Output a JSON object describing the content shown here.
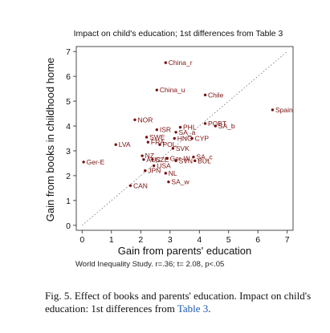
{
  "caption": {
    "text_before_ref": "Fig. 5.  Effect of books and parents' education. Impact on child's education: 1st differences from ",
    "ref": "Table 3",
    "text_after_ref": "."
  },
  "footnote": "World Inequality Study. r=.36; t= 2.08, p<.05",
  "colors": {
    "points": "#7a1010",
    "reference_line": "#444444",
    "axes": "#222222"
  },
  "chart_data": {
    "type": "scatter",
    "title": "Impact on child's education; 1st differences from Table 3",
    "xlabel": "Gain from parents' education",
    "ylabel": "Gain from books in childhood home",
    "xlim": [
      -0.2,
      7.2
    ],
    "ylim": [
      -0.2,
      7.2
    ],
    "xticks": [
      0,
      1,
      2,
      3,
      4,
      5,
      6,
      7
    ],
    "yticks": [
      0,
      1,
      2,
      3,
      4,
      5,
      6,
      7
    ],
    "grid": false,
    "reference_line": "y = x",
    "points": [
      {
        "label": "China_r",
        "x": 2.85,
        "y": 6.55
      },
      {
        "label": "China_u",
        "x": 2.55,
        "y": 5.45
      },
      {
        "label": "Chile",
        "x": 4.2,
        "y": 5.25
      },
      {
        "label": "Spain",
        "x": 6.5,
        "y": 4.65
      },
      {
        "label": "NOR",
        "x": 1.8,
        "y": 4.25
      },
      {
        "label": "POBT",
        "x": 4.2,
        "y": 4.1
      },
      {
        "label": "SA_b",
        "x": 4.55,
        "y": 4.0
      },
      {
        "label": "PHL",
        "x": 3.35,
        "y": 3.95
      },
      {
        "label": "ISR",
        "x": 2.55,
        "y": 3.85
      },
      {
        "label": "SA_a",
        "x": 3.2,
        "y": 3.75
      },
      {
        "label": "SWE",
        "x": 2.2,
        "y": 3.55
      },
      {
        "label": "HNG",
        "x": 3.15,
        "y": 3.5
      },
      {
        "label": "CYP",
        "x": 3.75,
        "y": 3.5
      },
      {
        "label": "FRA",
        "x": 2.25,
        "y": 3.35
      },
      {
        "label": "POL",
        "x": 2.65,
        "y": 3.25
      },
      {
        "label": "LVA",
        "x": 1.15,
        "y": 3.25
      },
      {
        "label": "SVK",
        "x": 3.1,
        "y": 3.1
      },
      {
        "label": "NZ",
        "x": 2.05,
        "y": 2.8
      },
      {
        "label": "SA_c",
        "x": 3.8,
        "y": 2.75
      },
      {
        "label": "AUS",
        "x": 2.1,
        "y": 2.65
      },
      {
        "label": "CZE",
        "x": 2.4,
        "y": 2.65
      },
      {
        "label": "Ger-W",
        "x": 2.9,
        "y": 2.7
      },
      {
        "label": "SVN",
        "x": 3.2,
        "y": 2.6
      },
      {
        "label": "BUL",
        "x": 3.85,
        "y": 2.6
      },
      {
        "label": "Ger-E",
        "x": 0.05,
        "y": 2.55
      },
      {
        "label": "USA",
        "x": 2.45,
        "y": 2.4
      },
      {
        "label": "JPN",
        "x": 2.15,
        "y": 2.2
      },
      {
        "label": "NL",
        "x": 2.85,
        "y": 2.1
      },
      {
        "label": "SA_w",
        "x": 2.95,
        "y": 1.75
      },
      {
        "label": "CAN",
        "x": 1.65,
        "y": 1.6
      }
    ]
  }
}
